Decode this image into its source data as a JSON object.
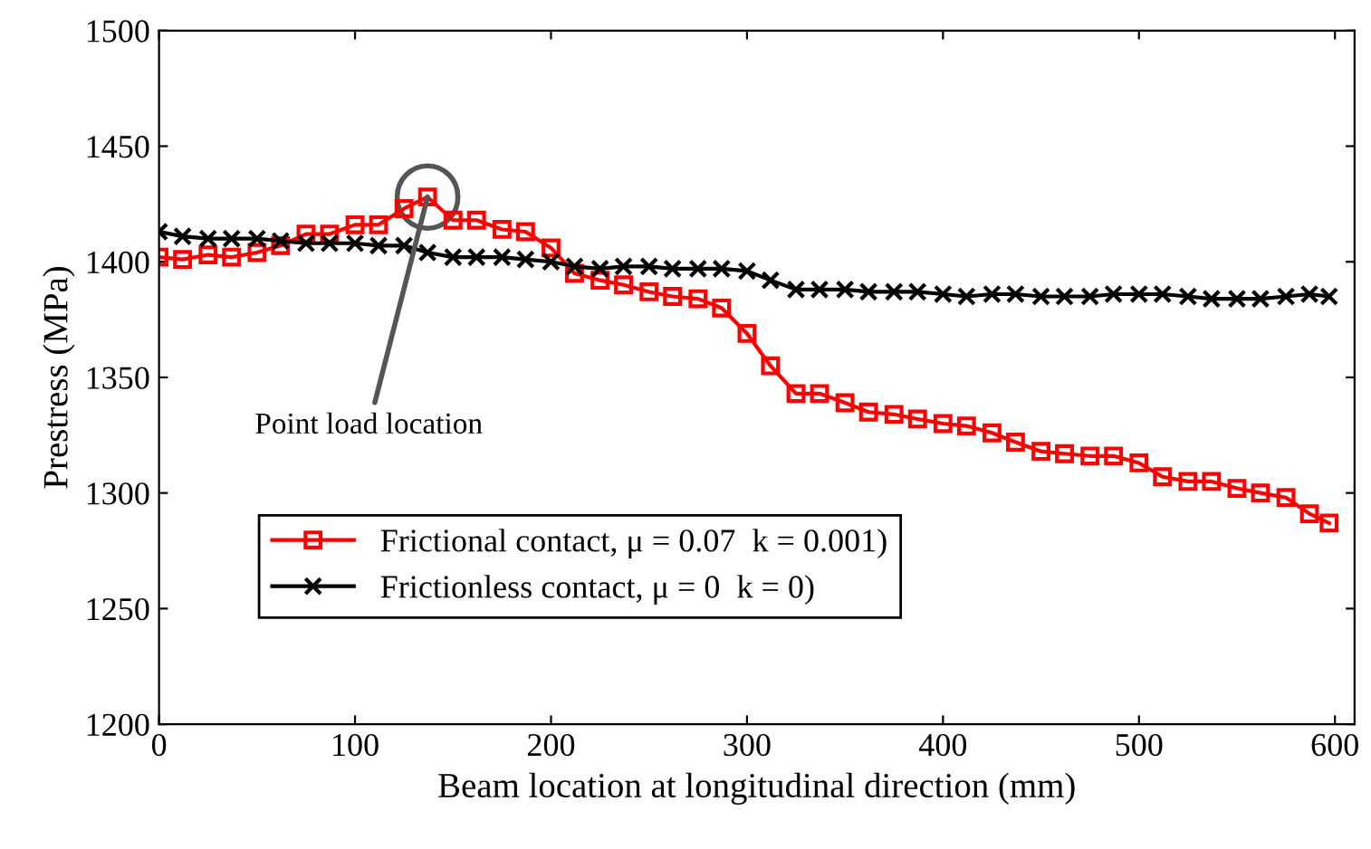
{
  "chart_data": {
    "type": "line",
    "xlabel": "Beam location at longitudinal direction (mm)",
    "ylabel": "Prestress (MPa)",
    "xlim": [
      0,
      610
    ],
    "xticks": [
      0,
      100,
      200,
      300,
      400,
      500,
      600
    ],
    "ylim": [
      1200,
      1500
    ],
    "yticks": [
      1200,
      1250,
      1300,
      1350,
      1400,
      1450,
      1500
    ],
    "grid": false,
    "legend": "bottom left",
    "line_style": "solid",
    "annotations": [
      {
        "text": "Point load location",
        "x": 137,
        "y": 1428
      }
    ],
    "series": [
      {
        "name": "Frictional contact, μ = 0.07  k = 0.001)",
        "color": "#ff0000",
        "marker": "square",
        "x": [
          0,
          12,
          25,
          37,
          50,
          62,
          75,
          87,
          100,
          112,
          125,
          137,
          150,
          162,
          175,
          187,
          200,
          212,
          225,
          237,
          250,
          262,
          275,
          287,
          300,
          312,
          325,
          337,
          350,
          362,
          375,
          387,
          400,
          412,
          425,
          437,
          450,
          462,
          475,
          487,
          500,
          512,
          525,
          537,
          550,
          562,
          575,
          587,
          597
        ],
        "values": [
          1402,
          1401,
          1403,
          1402,
          1404,
          1407,
          1412,
          1412,
          1416,
          1416,
          1423,
          1428,
          1418,
          1418,
          1414,
          1413,
          1406,
          1395,
          1392,
          1390,
          1387,
          1385,
          1384,
          1380,
          1369,
          1355,
          1343,
          1343,
          1339,
          1335,
          1334,
          1332,
          1330,
          1329,
          1326,
          1322,
          1318,
          1317,
          1316,
          1316,
          1313,
          1307,
          1305,
          1305,
          1302,
          1300,
          1298,
          1291,
          1287
        ]
      },
      {
        "name": "Frictionless contact, μ = 0  k = 0)",
        "color": "#000000",
        "marker": "cross",
        "x": [
          0,
          12,
          25,
          37,
          50,
          62,
          75,
          87,
          100,
          112,
          125,
          137,
          150,
          162,
          175,
          187,
          200,
          212,
          225,
          237,
          250,
          262,
          275,
          287,
          300,
          312,
          325,
          337,
          350,
          362,
          375,
          387,
          400,
          412,
          425,
          437,
          450,
          462,
          475,
          487,
          500,
          512,
          525,
          537,
          550,
          562,
          575,
          587,
          597
        ],
        "values": [
          1413,
          1411,
          1410,
          1410,
          1410,
          1409,
          1408,
          1408,
          1408,
          1407,
          1407,
          1404,
          1402,
          1402,
          1402,
          1401,
          1400,
          1398,
          1397,
          1398,
          1398,
          1397,
          1397,
          1397,
          1396,
          1392,
          1388,
          1388,
          1388,
          1387,
          1387,
          1387,
          1386,
          1385,
          1386,
          1386,
          1385,
          1385,
          1385,
          1386,
          1386,
          1386,
          1385,
          1384,
          1384,
          1384,
          1385,
          1386,
          1385
        ]
      }
    ]
  }
}
